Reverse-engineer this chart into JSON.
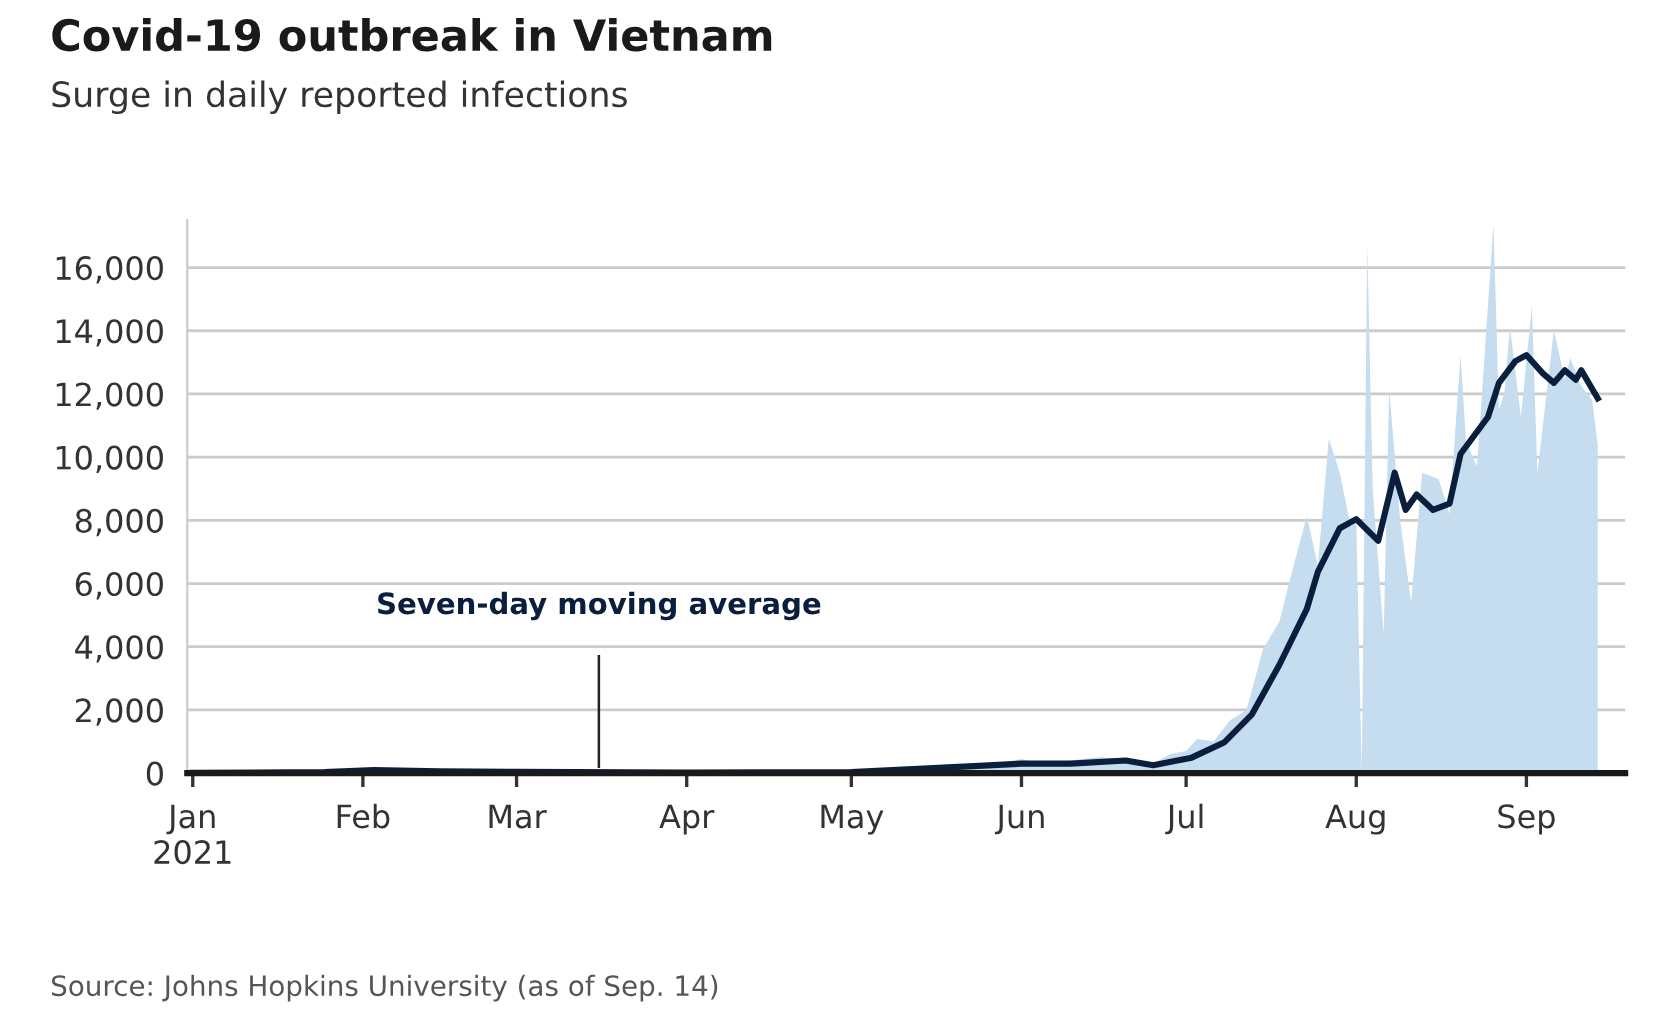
{
  "chart_data": {
    "type": "area",
    "title": "Covid-19 outbreak in Vietnam",
    "subtitle": "Surge in daily reported infections",
    "series": [
      {
        "color": "#c6dcef",
        "x": [
          "2021-01-01",
          "2021-01-28",
          "2021-02-01",
          "2021-02-05",
          "2021-03-01",
          "2021-04-01",
          "2021-05-01",
          "2021-05-10",
          "2021-05-20",
          "2021-05-26",
          "2021-06-01",
          "2021-06-05",
          "2021-06-10",
          "2021-06-15",
          "2021-06-20",
          "2021-06-25",
          "2021-06-28",
          "2021-07-01",
          "2021-07-03",
          "2021-07-06",
          "2021-07-09",
          "2021-07-12",
          "2021-07-15",
          "2021-07-18",
          "2021-07-20",
          "2021-07-23",
          "2021-07-25",
          "2021-07-27",
          "2021-07-29",
          "2021-07-31",
          "2021-08-01",
          "2021-08-02",
          "2021-08-03",
          "2021-08-04",
          "2021-08-06",
          "2021-08-07",
          "2021-08-09",
          "2021-08-11",
          "2021-08-13",
          "2021-08-16",
          "2021-08-18",
          "2021-08-20",
          "2021-08-21",
          "2021-08-23",
          "2021-08-26",
          "2021-08-27",
          "2021-08-28",
          "2021-08-29",
          "2021-08-31",
          "2021-09-02",
          "2021-09-03",
          "2021-09-05",
          "2021-09-06",
          "2021-09-08",
          "2021-09-09",
          "2021-09-11",
          "2021-09-13",
          "2021-09-14"
        ],
        "values": [
          20,
          60,
          150,
          60,
          50,
          30,
          40,
          120,
          300,
          250,
          450,
          300,
          400,
          500,
          450,
          300,
          600,
          700,
          1080,
          1000,
          1670,
          2000,
          3920,
          4800,
          6180,
          8140,
          6570,
          10590,
          9510,
          7800,
          8000,
          0,
          16760,
          9000,
          4400,
          12160,
          8000,
          5390,
          9510,
          9310,
          8200,
          13230,
          10490,
          9700,
          17380,
          11500,
          12060,
          14120,
          11270,
          14800,
          9510,
          12500,
          14020,
          12450,
          13140,
          12250,
          11800,
          10390
        ]
      },
      {
        "type": "line",
        "color": "#0a1f3d",
        "x": [
          "2021-01-01",
          "2021-01-25",
          "2021-02-03",
          "2021-02-15",
          "2021-03-01",
          "2021-04-01",
          "2021-05-01",
          "2021-05-15",
          "2021-06-01",
          "2021-06-10",
          "2021-06-20",
          "2021-06-25",
          "2021-07-02",
          "2021-07-08",
          "2021-07-13",
          "2021-07-18",
          "2021-07-23",
          "2021-07-25",
          "2021-07-29",
          "2021-08-01",
          "2021-08-05",
          "2021-08-08",
          "2021-08-10",
          "2021-08-12",
          "2021-08-15",
          "2021-08-18",
          "2021-08-20",
          "2021-08-25",
          "2021-08-27",
          "2021-08-30",
          "2021-09-01",
          "2021-09-04",
          "2021-09-06",
          "2021-09-08",
          "2021-09-10",
          "2021-09-11",
          "2021-09-14"
        ],
        "values": [
          10,
          30,
          100,
          60,
          40,
          20,
          30,
          150,
          300,
          300,
          400,
          250,
          490,
          980,
          1860,
          3430,
          5200,
          6370,
          7750,
          8040,
          7350,
          9510,
          8330,
          8820,
          8330,
          8530,
          10100,
          11270,
          12350,
          13040,
          13230,
          12650,
          12350,
          12750,
          12450,
          12750,
          11860
        ]
      }
    ],
    "xlim": [
      "2020-12-31",
      "2021-09-19"
    ],
    "xticks": [
      {
        "value": "2021-01-01",
        "label": "Jan\n2021"
      },
      {
        "value": "2021-02-01",
        "label": "Feb"
      },
      {
        "value": "2021-03-01",
        "label": "Mar"
      },
      {
        "value": "2021-04-01",
        "label": "Apr"
      },
      {
        "value": "2021-05-01",
        "label": "May"
      },
      {
        "value": "2021-06-01",
        "label": "Jun"
      },
      {
        "value": "2021-07-01",
        "label": "Jul"
      },
      {
        "value": "2021-08-01",
        "label": "Aug"
      },
      {
        "value": "2021-09-01",
        "label": "Sep"
      }
    ],
    "ylim": [
      0,
      17500
    ],
    "yticks": [
      {
        "value": 0,
        "label": "0"
      },
      {
        "value": 2000,
        "label": "2,000"
      },
      {
        "value": 4000,
        "label": "4,000"
      },
      {
        "value": 6000,
        "label": "6,000"
      },
      {
        "value": 8000,
        "label": "8,000"
      },
      {
        "value": 10000,
        "label": "10,000"
      },
      {
        "value": 12000,
        "label": "12,000"
      },
      {
        "value": 14000,
        "label": "14,000"
      },
      {
        "value": 16000,
        "label": "16,000"
      }
    ],
    "grid": "y",
    "annotations": [
      {
        "text": "Seven-day moving average",
        "x": "2021-03-16",
        "y": 200
      },
      "Source: Johns Hopkins University (as of Sep. 14)"
    ]
  }
}
